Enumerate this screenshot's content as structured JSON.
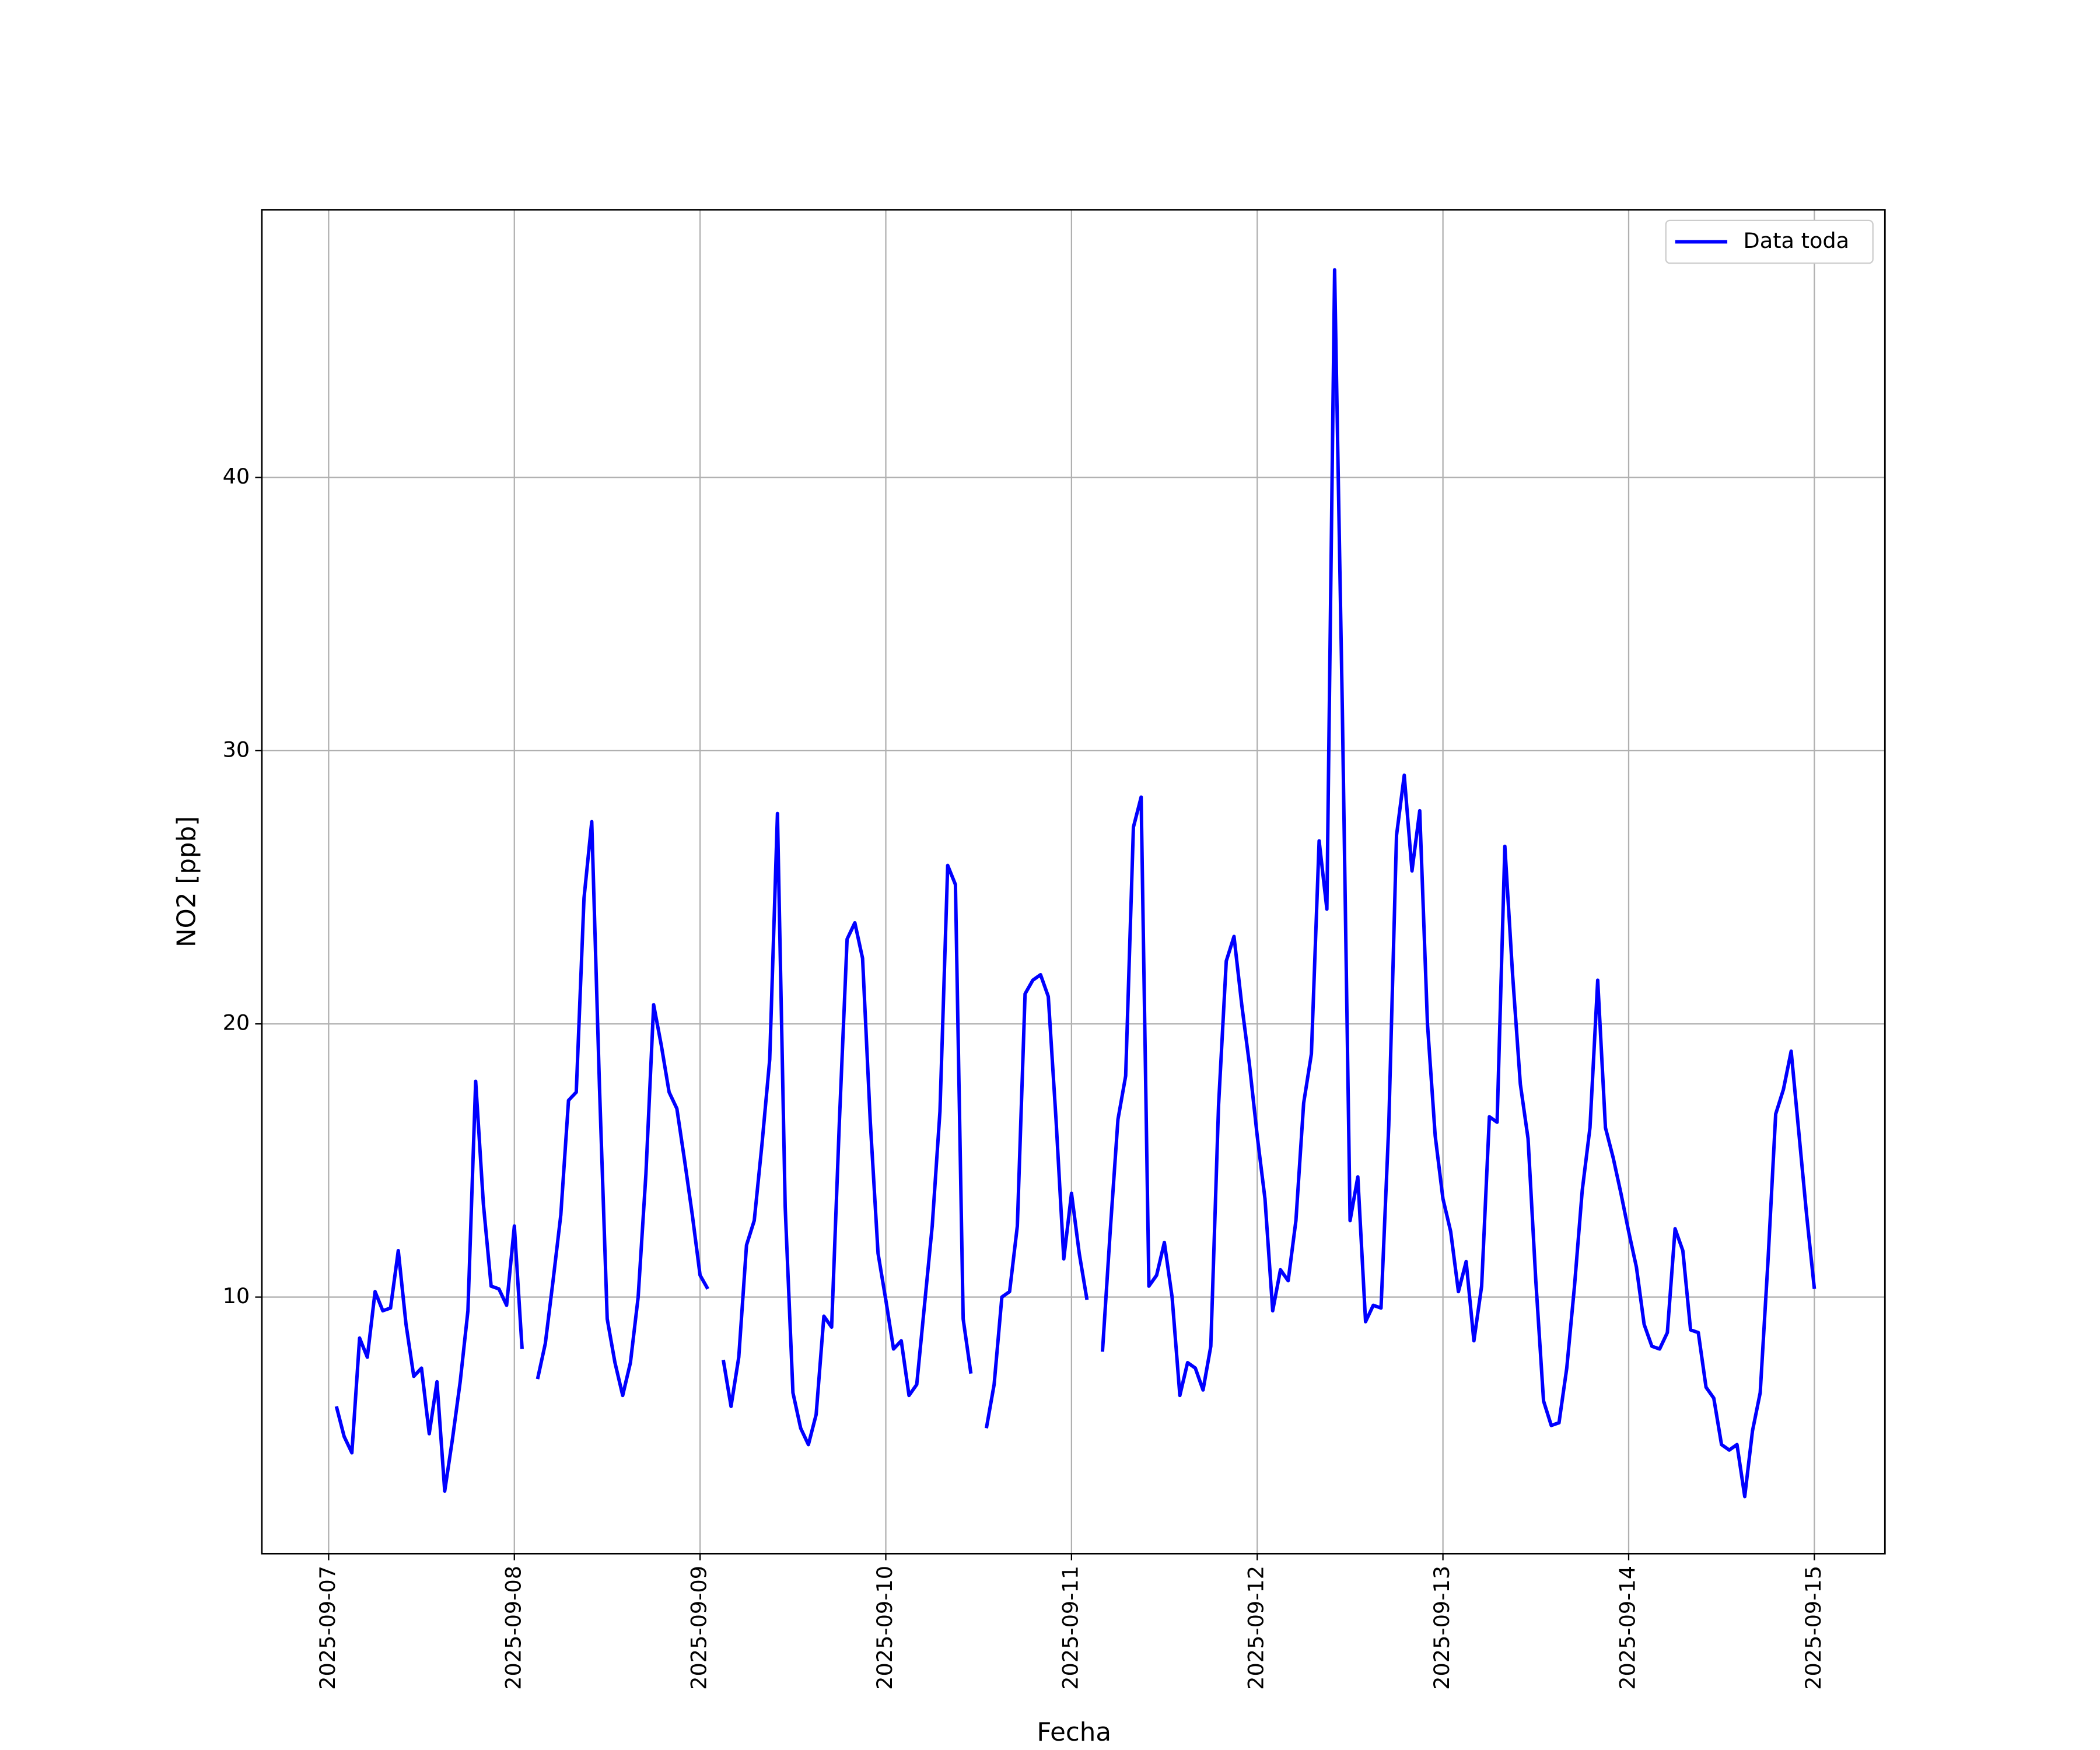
{
  "chart_data": {
    "type": "line",
    "x_label": "Fecha",
    "y_label": "NO2 [ppb]",
    "x": [
      "2025-09-07 01:00",
      "2025-09-07 02:00",
      "2025-09-07 03:00",
      "2025-09-07 04:00",
      "2025-09-07 05:00",
      "2025-09-07 06:00",
      "2025-09-07 07:00",
      "2025-09-07 08:00",
      "2025-09-07 09:00",
      "2025-09-07 10:00",
      "2025-09-07 11:00",
      "2025-09-07 12:00",
      "2025-09-07 13:00",
      "2025-09-07 14:00",
      "2025-09-07 15:00",
      "2025-09-07 16:00",
      "2025-09-07 17:00",
      "2025-09-07 18:00",
      "2025-09-07 19:00",
      "2025-09-07 20:00",
      "2025-09-07 21:00",
      "2025-09-07 22:00",
      "2025-09-07 23:00",
      "2025-09-08 00:00",
      "2025-09-08 01:00",
      "2025-09-08 02:00",
      "2025-09-08 03:00",
      "2025-09-08 04:00",
      "2025-09-08 05:00",
      "2025-09-08 06:00",
      "2025-09-08 07:00",
      "2025-09-08 08:00",
      "2025-09-08 09:00",
      "2025-09-08 10:00",
      "2025-09-08 11:00",
      "2025-09-08 12:00",
      "2025-09-08 13:00",
      "2025-09-08 14:00",
      "2025-09-08 15:00",
      "2025-09-08 16:00",
      "2025-09-08 17:00",
      "2025-09-08 18:00",
      "2025-09-08 19:00",
      "2025-09-08 20:00",
      "2025-09-08 21:00",
      "2025-09-08 22:00",
      "2025-09-08 23:00",
      "2025-09-09 00:00",
      "2025-09-09 01:00",
      "2025-09-09 02:00",
      "2025-09-09 03:00",
      "2025-09-09 04:00",
      "2025-09-09 05:00",
      "2025-09-09 06:00",
      "2025-09-09 07:00",
      "2025-09-09 08:00",
      "2025-09-09 09:00",
      "2025-09-09 10:00",
      "2025-09-09 11:00",
      "2025-09-09 12:00",
      "2025-09-09 13:00",
      "2025-09-09 14:00",
      "2025-09-09 15:00",
      "2025-09-09 16:00",
      "2025-09-09 17:00",
      "2025-09-09 18:00",
      "2025-09-09 19:00",
      "2025-09-09 20:00",
      "2025-09-09 21:00",
      "2025-09-09 22:00",
      "2025-09-09 23:00",
      "2025-09-10 00:00",
      "2025-09-10 01:00",
      "2025-09-10 02:00",
      "2025-09-10 03:00",
      "2025-09-10 04:00",
      "2025-09-10 05:00",
      "2025-09-10 06:00",
      "2025-09-10 07:00",
      "2025-09-10 08:00",
      "2025-09-10 09:00",
      "2025-09-10 10:00",
      "2025-09-10 11:00",
      "2025-09-10 12:00",
      "2025-09-10 13:00",
      "2025-09-10 14:00",
      "2025-09-10 15:00",
      "2025-09-10 16:00",
      "2025-09-10 17:00",
      "2025-09-10 18:00",
      "2025-09-10 19:00",
      "2025-09-10 20:00",
      "2025-09-10 21:00",
      "2025-09-10 22:00",
      "2025-09-10 23:00",
      "2025-09-11 00:00",
      "2025-09-11 01:00",
      "2025-09-11 02:00",
      "2025-09-11 03:00",
      "2025-09-11 04:00",
      "2025-09-11 05:00",
      "2025-09-11 06:00",
      "2025-09-11 07:00",
      "2025-09-11 08:00",
      "2025-09-11 09:00",
      "2025-09-11 10:00",
      "2025-09-11 11:00",
      "2025-09-11 12:00",
      "2025-09-11 13:00",
      "2025-09-11 14:00",
      "2025-09-11 15:00",
      "2025-09-11 16:00",
      "2025-09-11 17:00",
      "2025-09-11 18:00",
      "2025-09-11 19:00",
      "2025-09-11 20:00",
      "2025-09-11 21:00",
      "2025-09-11 22:00",
      "2025-09-11 23:00",
      "2025-09-12 00:00",
      "2025-09-12 01:00",
      "2025-09-12 02:00",
      "2025-09-12 03:00",
      "2025-09-12 04:00",
      "2025-09-12 05:00",
      "2025-09-12 06:00",
      "2025-09-12 07:00",
      "2025-09-12 08:00",
      "2025-09-12 09:00",
      "2025-09-12 10:00",
      "2025-09-12 11:00",
      "2025-09-12 12:00",
      "2025-09-12 13:00",
      "2025-09-12 14:00",
      "2025-09-12 15:00",
      "2025-09-12 16:00",
      "2025-09-12 17:00",
      "2025-09-12 18:00",
      "2025-09-12 19:00",
      "2025-09-12 20:00",
      "2025-09-12 21:00",
      "2025-09-12 22:00",
      "2025-09-12 23:00",
      "2025-09-13 00:00",
      "2025-09-13 01:00",
      "2025-09-13 02:00",
      "2025-09-13 03:00",
      "2025-09-13 04:00",
      "2025-09-13 05:00",
      "2025-09-13 06:00",
      "2025-09-13 07:00",
      "2025-09-13 08:00",
      "2025-09-13 09:00",
      "2025-09-13 10:00",
      "2025-09-13 11:00",
      "2025-09-13 12:00",
      "2025-09-13 13:00",
      "2025-09-13 14:00",
      "2025-09-13 15:00",
      "2025-09-13 16:00",
      "2025-09-13 17:00",
      "2025-09-13 18:00",
      "2025-09-13 19:00",
      "2025-09-13 20:00",
      "2025-09-13 21:00",
      "2025-09-13 22:00",
      "2025-09-13 23:00",
      "2025-09-14 00:00",
      "2025-09-14 01:00",
      "2025-09-14 02:00",
      "2025-09-14 03:00",
      "2025-09-14 04:00",
      "2025-09-14 05:00",
      "2025-09-14 06:00",
      "2025-09-14 07:00",
      "2025-09-14 08:00",
      "2025-09-14 09:00",
      "2025-09-14 10:00",
      "2025-09-14 11:00",
      "2025-09-14 12:00",
      "2025-09-14 13:00",
      "2025-09-14 14:00",
      "2025-09-14 15:00",
      "2025-09-14 16:00",
      "2025-09-14 17:00",
      "2025-09-14 18:00",
      "2025-09-14 19:00",
      "2025-09-14 20:00",
      "2025-09-14 21:00",
      "2025-09-14 22:00",
      "2025-09-14 23:00",
      "2025-09-15 00:00"
    ],
    "series": [
      {
        "name": "Data toda",
        "color": "#0000ff",
        "values": [
          6.0,
          4.9,
          4.3,
          8.5,
          7.8,
          10.2,
          9.5,
          9.6,
          11.7,
          9.0,
          7.1,
          7.4,
          5.0,
          6.9,
          2.9,
          4.8,
          6.9,
          9.5,
          17.9,
          13.4,
          10.4,
          10.3,
          9.7,
          12.6,
          8.1,
          null,
          7.0,
          8.3,
          10.6,
          13.0,
          17.2,
          17.5,
          24.6,
          27.4,
          17.7,
          9.2,
          7.6,
          6.4,
          7.6,
          10.0,
          14.5,
          20.7,
          19.2,
          17.5,
          16.9,
          15.0,
          13.0,
          10.8,
          10.3,
          null,
          7.7,
          6.0,
          7.8,
          11.9,
          12.8,
          15.6,
          18.7,
          27.7,
          13.3,
          6.5,
          5.2,
          4.6,
          5.7,
          9.3,
          8.9,
          16.4,
          23.1,
          23.7,
          22.4,
          16.4,
          11.6,
          9.9,
          8.1,
          8.4,
          6.4,
          6.8,
          9.7,
          12.6,
          16.8,
          25.8,
          25.1,
          9.2,
          7.2,
          null,
          5.2,
          6.8,
          10.0,
          10.2,
          12.6,
          21.1,
          21.6,
          21.8,
          21.0,
          16.5,
          11.4,
          13.8,
          11.6,
          9.9,
          null,
          8.0,
          12.4,
          16.5,
          18.1,
          27.2,
          28.3,
          10.4,
          10.8,
          12.0,
          10.0,
          6.4,
          7.6,
          7.4,
          6.6,
          8.2,
          17.0,
          22.3,
          23.2,
          20.7,
          18.5,
          15.9,
          13.6,
          9.5,
          11.0,
          10.6,
          12.8,
          17.1,
          18.9,
          26.7,
          24.2,
          47.6,
          31.5,
          12.8,
          14.4,
          9.1,
          9.7,
          9.6,
          16.3,
          26.9,
          29.1,
          25.6,
          27.8,
          20.0,
          15.9,
          13.6,
          12.4,
          10.2,
          11.3,
          8.4,
          10.4,
          16.6,
          16.4,
          26.5,
          21.8,
          17.8,
          15.8,
          10.6,
          6.2,
          5.3,
          5.4,
          7.4,
          10.4,
          13.9,
          16.2,
          21.6,
          16.2,
          15.1,
          13.8,
          12.4,
          11.1,
          9.0,
          8.2,
          8.1,
          8.7,
          12.5,
          11.7,
          8.8,
          8.7,
          6.7,
          6.3,
          4.6,
          4.4,
          4.6,
          2.7,
          5.1,
          6.5,
          11.3,
          16.7,
          17.6,
          19.0,
          16.0,
          13.0,
          10.3
        ]
      }
    ],
    "xlim": [
      "2025-09-06 15:22",
      "2025-09-15 09:07"
    ],
    "xticks": [
      "2025-09-07",
      "2025-09-08",
      "2025-09-09",
      "2025-09-10",
      "2025-09-11",
      "2025-09-12",
      "2025-09-13",
      "2025-09-14",
      "2025-09-15"
    ],
    "ylim": [
      0.61,
      49.8
    ],
    "yticks": [
      10,
      20,
      30,
      40
    ],
    "grid": true,
    "legend": "upper right"
  }
}
